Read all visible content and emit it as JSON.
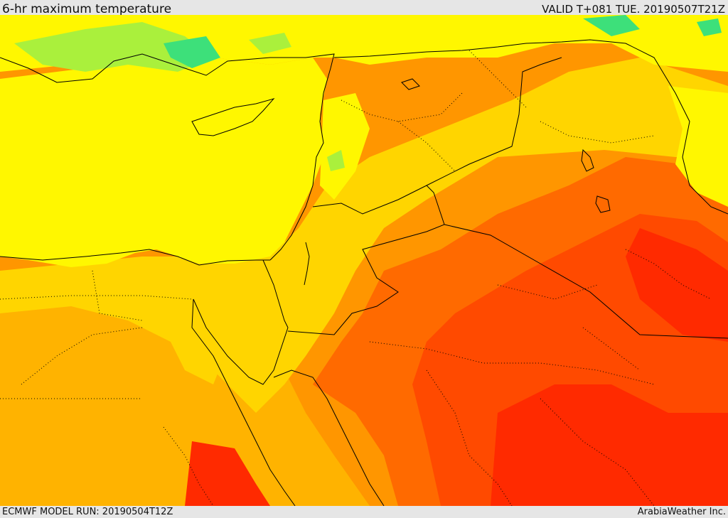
{
  "header": {
    "title": "6-hr maximum temperature",
    "valid": "VALID T+081 TUE. 20190507T21Z"
  },
  "footer": {
    "model_run": "ECMWF MODEL RUN: 20190504T12Z",
    "credit": "ArabiaWeather Inc."
  },
  "map": {
    "field": "temperature",
    "colors": {
      "green": "#3de07a",
      "light_green": "#aaf03c",
      "yellow_green": "#d9f51a",
      "yellow": "#fff700",
      "gold": "#ffd500",
      "light_orange": "#ffb300",
      "orange": "#ff9600",
      "dark_orange": "#ff6a00",
      "red_orange": "#ff4a00",
      "red": "#ff2a00"
    },
    "boundaries": "solid black coastlines and country borders, dotted admin boundaries"
  }
}
